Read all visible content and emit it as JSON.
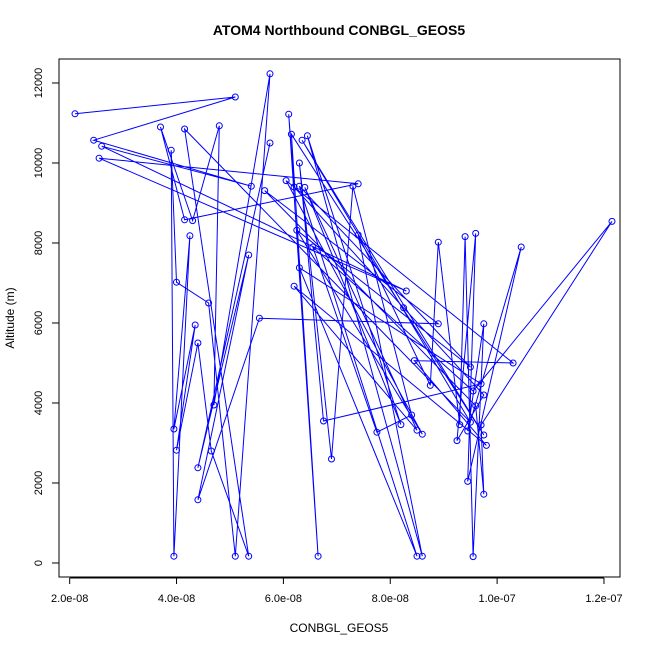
{
  "chart_data": {
    "type": "line",
    "title": "ATOM4 Northbound CONBGL_GEOS5",
    "xlabel": "CONBGL_GEOS5",
    "ylabel": "Altitude (m)",
    "xlim": [
      1.8e-08,
      1.23e-07
    ],
    "ylim": [
      -350,
      12600
    ],
    "x_ticks": [
      2e-08,
      4e-08,
      6e-08,
      8e-08,
      1e-07,
      1.2e-07
    ],
    "x_tick_labels": [
      "2.0e-08",
      "4.0e-08",
      "6.0e-08",
      "8.0e-08",
      "1.0e-07",
      "1.2e-07"
    ],
    "y_ticks": [
      0,
      2000,
      4000,
      6000,
      8000,
      10000,
      12000
    ],
    "y_tick_labels": [
      "0",
      "2000",
      "4000",
      "6000",
      "8000",
      "10000",
      "12000"
    ],
    "grid": false,
    "legend": "none",
    "series": [
      {
        "color": "#0000ff",
        "marker": "open-circle",
        "points": [
          [
            2.1e-08,
            11230
          ],
          [
            5.1e-08,
            11650
          ],
          [
            2.45e-08,
            10570
          ],
          [
            5.4e-08,
            9420
          ],
          [
            2.6e-08,
            10420
          ],
          [
            8.3e-08,
            6800
          ],
          [
            2.55e-08,
            10120
          ],
          [
            7.4e-08,
            9480
          ],
          [
            4.15e-08,
            8580
          ],
          [
            3.7e-08,
            10900
          ],
          [
            4.3e-08,
            8560
          ],
          [
            4.8e-08,
            10930
          ],
          [
            4.7e-08,
            3950
          ],
          [
            5.75e-08,
            12230
          ],
          [
            5.1e-08,
            170
          ],
          [
            4.6e-08,
            6500
          ],
          [
            4e-08,
            7020
          ],
          [
            3.9e-08,
            10320
          ],
          [
            3.95e-08,
            170
          ],
          [
            4.25e-08,
            8180
          ],
          [
            3.95e-08,
            3350
          ],
          [
            4.35e-08,
            5950
          ],
          [
            4e-08,
            2820
          ],
          [
            4.4e-08,
            5500
          ],
          [
            4.65e-08,
            2800
          ],
          [
            5.35e-08,
            170
          ],
          [
            4.15e-08,
            10850
          ],
          [
            9.5e-08,
            3520
          ],
          [
            6.35e-08,
            10570
          ],
          [
            9.75e-08,
            3200
          ],
          [
            6.15e-08,
            10720
          ],
          [
            6.65e-08,
            170
          ],
          [
            6.1e-08,
            11220
          ],
          [
            6.2e-08,
            9400
          ],
          [
            8.25e-08,
            6380
          ],
          [
            9.75e-08,
            4200
          ],
          [
            9.25e-08,
            3060
          ],
          [
            9.6e-08,
            8240
          ],
          [
            9.45e-08,
            2040
          ],
          [
            1.045e-07,
            7900
          ],
          [
            9.45e-08,
            3300
          ],
          [
            9.75e-08,
            5980
          ],
          [
            9.55e-08,
            160
          ],
          [
            9.4e-08,
            8160
          ],
          [
            9.3e-08,
            3460
          ],
          [
            8.9e-08,
            8020
          ],
          [
            8.75e-08,
            4440
          ],
          [
            7.4e-08,
            8200
          ],
          [
            8.6e-08,
            170
          ],
          [
            6.45e-08,
            10680
          ],
          [
            8.2e-08,
            3460
          ],
          [
            6.4e-08,
            9390
          ],
          [
            8.5e-08,
            3320
          ],
          [
            6.2e-08,
            6920
          ],
          [
            9.8e-08,
            2940
          ],
          [
            8.45e-08,
            5060
          ],
          [
            1.03e-07,
            5000
          ],
          [
            6.05e-08,
            9560
          ],
          [
            8.6e-08,
            3220
          ],
          [
            6.25e-08,
            8320
          ],
          [
            9.5e-08,
            4900
          ],
          [
            6.3e-08,
            9420
          ],
          [
            8.5e-08,
            170
          ],
          [
            6.3e-08,
            7380
          ],
          [
            9.7e-08,
            4480
          ],
          [
            6.75e-08,
            3550
          ],
          [
            6.3e-08,
            10000
          ],
          [
            6.9e-08,
            2600
          ],
          [
            7.3e-08,
            9420
          ],
          [
            8.4e-08,
            3700
          ],
          [
            7.75e-08,
            3270
          ],
          [
            6.55e-08,
            7900
          ],
          [
            9.55e-08,
            4300
          ],
          [
            1.215e-07,
            8540
          ],
          [
            9.7e-08,
            3450
          ],
          [
            9.75e-08,
            1720
          ],
          [
            9.6e-08,
            3930
          ],
          [
            5.65e-08,
            9310
          ],
          [
            8.9e-08,
            5980
          ],
          [
            5.55e-08,
            6120
          ],
          [
            4.4e-08,
            1580
          ],
          [
            5.35e-08,
            7700
          ],
          [
            4.4e-08,
            2380
          ],
          [
            5.75e-08,
            10500
          ]
        ]
      }
    ]
  }
}
